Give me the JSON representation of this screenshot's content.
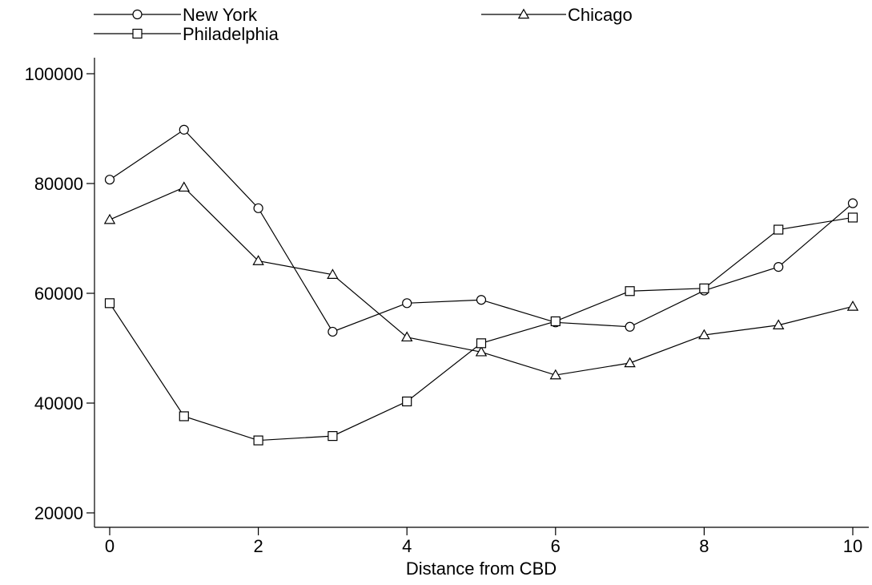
{
  "chart_data": {
    "type": "line",
    "title": "",
    "xlabel": "Distance from CBD",
    "ylabel": "",
    "x": [
      0,
      1,
      2,
      3,
      4,
      5,
      6,
      7,
      8,
      9,
      10
    ],
    "xlim": [
      0,
      10
    ],
    "ylim": [
      20000,
      100000
    ],
    "xticks": [
      0,
      2,
      4,
      6,
      8,
      10
    ],
    "yticks": [
      20000,
      40000,
      60000,
      80000,
      100000
    ],
    "grid": false,
    "legend_position": "top",
    "line_color": "#000000",
    "series": [
      {
        "name": "New York",
        "marker": "circle",
        "values": [
          80700,
          89800,
          75500,
          53000,
          58200,
          58800,
          54700,
          53900,
          60500,
          64800,
          76400
        ]
      },
      {
        "name": "Chicago",
        "marker": "triangle",
        "values": [
          73400,
          79300,
          65900,
          63400,
          52000,
          49300,
          45100,
          47300,
          52400,
          54200,
          57600
        ]
      },
      {
        "name": "Philadelphia",
        "marker": "square",
        "values": [
          58200,
          37600,
          33200,
          34000,
          40300,
          50900,
          54900,
          60400,
          60900,
          71600,
          73800
        ]
      }
    ]
  }
}
